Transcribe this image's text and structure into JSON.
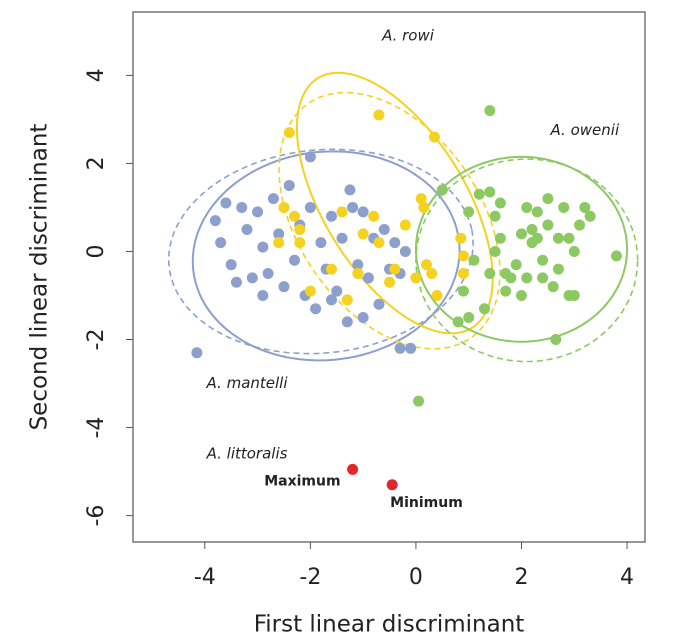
{
  "chart_data": {
    "type": "scatter",
    "xlabel": "First linear discriminant",
    "ylabel": "Second linear discriminant",
    "xlim": [
      -5.36,
      4.34
    ],
    "ylim": [
      -6.6,
      5.44
    ],
    "xticks": [
      -4,
      -2,
      0,
      2,
      4
    ],
    "yticks": [
      -6,
      -4,
      -2,
      0,
      2,
      4
    ],
    "series": [
      {
        "name": "A. mantelli",
        "color": "#8c9fcd",
        "x": [
          -4.15,
          -3.8,
          -3.6,
          -3.7,
          -3.5,
          -3.3,
          -3.2,
          -3.1,
          -3.0,
          -2.9,
          -2.8,
          -2.7,
          -2.6,
          -2.5,
          -2.4,
          -2.3,
          -2.2,
          -2.1,
          -2.0,
          -1.9,
          -1.8,
          -1.7,
          -1.6,
          -1.5,
          -1.4,
          -1.3,
          -1.25,
          -1.1,
          -1.0,
          -0.9,
          -0.8,
          -0.7,
          -0.6,
          -0.5,
          -0.4,
          -0.3,
          -0.1,
          -1.2,
          -2.0,
          -3.4,
          -2.9,
          -1.0,
          -0.3,
          -0.2,
          -1.6
        ],
        "y": [
          -2.3,
          0.7,
          1.1,
          0.2,
          -0.3,
          1.0,
          0.5,
          -0.6,
          0.9,
          0.1,
          -0.5,
          1.2,
          0.4,
          -0.8,
          1.5,
          -0.2,
          0.6,
          -1.0,
          1.0,
          -1.3,
          0.2,
          -0.4,
          0.8,
          -0.9,
          0.3,
          -1.6,
          1.4,
          -0.3,
          0.9,
          -0.6,
          0.3,
          -1.2,
          0.5,
          -0.4,
          0.2,
          -2.2,
          -2.2,
          1.0,
          2.15,
          -0.7,
          -1.0,
          -1.5,
          -0.5,
          0.0,
          -1.1
        ],
        "ellipses": [
          {
            "cx": -1.7,
            "cy": -0.1,
            "rx": 2.55,
            "ry": 2.35,
            "angle": 20,
            "dashed": false
          },
          {
            "cx": -1.8,
            "cy": 0.0,
            "rx": 2.9,
            "ry": 2.3,
            "angle": 10,
            "dashed": true
          }
        ]
      },
      {
        "name": "A. rowi",
        "color": "#f4d21f",
        "x": [
          -2.4,
          -0.7,
          0.35,
          -2.3,
          -2.2,
          -2.2,
          -2.0,
          -1.3,
          -1.1,
          -1.0,
          -0.8,
          -0.7,
          -0.4,
          -0.2,
          0.1,
          0.2,
          0.3,
          0.9,
          0.9,
          0.85,
          0.4,
          -1.4,
          -2.6,
          -1.6,
          0.0,
          -2.5,
          0.15,
          -0.5
        ],
        "y": [
          2.7,
          3.1,
          2.6,
          0.8,
          0.5,
          0.2,
          -0.9,
          -1.1,
          -0.5,
          0.4,
          0.8,
          0.2,
          -0.4,
          0.6,
          1.2,
          -0.3,
          -0.5,
          -0.5,
          -0.1,
          0.3,
          -1.0,
          0.9,
          0.2,
          -0.4,
          -0.6,
          1.0,
          1.0,
          -0.7
        ],
        "ellipses": [
          {
            "cx": -0.4,
            "cy": 1.1,
            "rx": 1.4,
            "ry": 3.2,
            "angle": 25,
            "dashed": false
          },
          {
            "cx": -0.5,
            "cy": 0.7,
            "rx": 1.8,
            "ry": 3.1,
            "angle": 25,
            "dashed": true
          }
        ]
      },
      {
        "name": "A. owenii",
        "color": "#8dc963",
        "x": [
          1.4,
          0.05,
          2.65,
          0.5,
          1.2,
          1.4,
          1.5,
          1.6,
          1.5,
          1.4,
          1.7,
          1.9,
          2.0,
          2.1,
          2.2,
          2.3,
          2.4,
          2.5,
          2.6,
          2.7,
          2.8,
          2.9,
          3.0,
          3.1,
          3.2,
          3.3,
          2.2,
          2.0,
          1.8,
          1.1,
          0.9,
          1.0,
          1.3,
          1.0,
          3.8,
          2.7,
          2.5,
          1.6,
          2.9,
          2.4,
          1.7,
          2.1,
          0.8,
          2.3,
          3.0
        ],
        "y": [
          3.2,
          -3.4,
          -2.0,
          1.4,
          1.3,
          1.35,
          0.8,
          0.3,
          0.0,
          -0.5,
          -0.9,
          -0.3,
          0.4,
          -0.6,
          0.2,
          0.9,
          -0.2,
          0.6,
          -0.8,
          0.3,
          1.0,
          -1.0,
          0.0,
          0.6,
          1.0,
          0.8,
          0.5,
          -1.0,
          -0.6,
          -0.2,
          -0.9,
          0.9,
          -1.3,
          -1.5,
          -0.1,
          -0.4,
          1.2,
          1.1,
          0.3,
          -0.6,
          -0.5,
          1.0,
          -1.6,
          0.3,
          -1.0
        ],
        "ellipses": [
          {
            "cx": 2.0,
            "cy": 0.05,
            "rx": 2.0,
            "ry": 2.1,
            "angle": 0,
            "dashed": false
          },
          {
            "cx": 2.1,
            "cy": -0.2,
            "rx": 2.1,
            "ry": 2.3,
            "angle": 0,
            "dashed": true
          }
        ]
      },
      {
        "name": "A. littoralis",
        "color": "#e3262b",
        "x": [
          -1.2,
          -0.45
        ],
        "y": [
          -4.95,
          -5.3
        ],
        "point_labels": [
          "Maximum",
          "Minimum"
        ]
      }
    ]
  }
}
